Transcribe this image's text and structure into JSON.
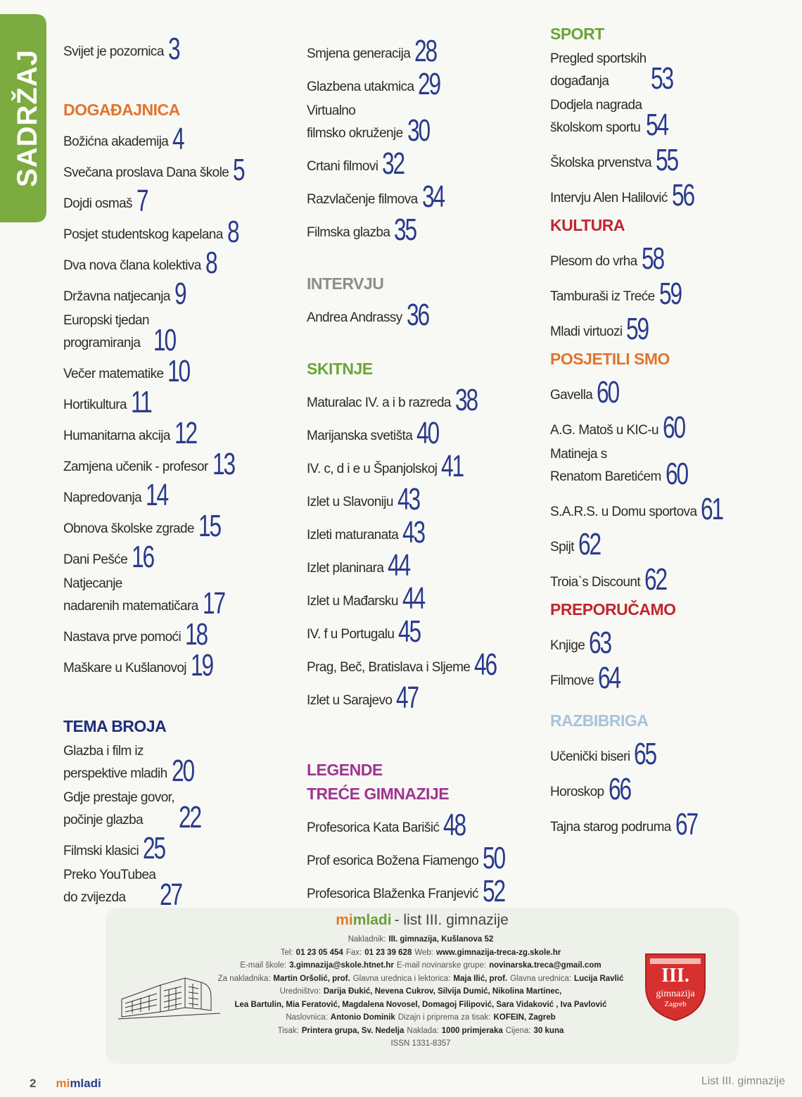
{
  "sidebar": {
    "title": "SADRŽAJ"
  },
  "contents": {
    "columns": [
      {
        "sections": [
          {
            "entries": [
              {
                "lines": [
                  "Svijet je pozornica"
                ],
                "page": 3
              }
            ]
          },
          {
            "heading": {
              "lines": [
                "DOGAĐAJNICA"
              ],
              "color": "#e2742c"
            },
            "entries": [
              {
                "lines": [
                  "Božićna akademija"
                ],
                "page": 4
              },
              {
                "lines": [
                  "Svečana proslava Dana škole"
                ],
                "page": 5
              },
              {
                "lines": [
                  "Dojdi osmaš"
                ],
                "page": 7
              },
              {
                "lines": [
                  "Posjet studentskog kapelana"
                ],
                "page": 8
              },
              {
                "lines": [
                  "Dva nova člana kolektiva"
                ],
                "page": 8
              },
              {
                "lines": [
                  "Državna natjecanja"
                ],
                "page": 9
              },
              {
                "lines": [
                  "Europski tjedan",
                  "programiranja"
                ],
                "page": 10
              },
              {
                "lines": [
                  "Večer matematike"
                ],
                "page": 10
              },
              {
                "lines": [
                  "Hortikultura"
                ],
                "page": 11
              },
              {
                "lines": [
                  "Humanitarna akcija"
                ],
                "page": 12
              },
              {
                "lines": [
                  "Zamjena učenik - profesor"
                ],
                "page": 13
              },
              {
                "lines": [
                  "Napredovanja"
                ],
                "page": 14
              },
              {
                "lines": [
                  "Obnova školske zgrade"
                ],
                "page": 15
              },
              {
                "lines": [
                  "Dani Pešće"
                ],
                "page": 16
              },
              {
                "lines": [
                  "Natjecanje",
                  "nadarenih matematičara"
                ],
                "page": 17
              },
              {
                "lines": [
                  "Nastava prve pomoći"
                ],
                "page": 18
              },
              {
                "lines": [
                  "Maškare u Kušlanovoj"
                ],
                "page": 19
              }
            ]
          },
          {
            "heading": {
              "lines": [
                "TEMA BROJA"
              ],
              "color": "#1f2e78"
            },
            "entries": [
              {
                "lines": [
                  "Glazba i film iz",
                  "perspektive mladih"
                ],
                "page": 20
              },
              {
                "lines": [
                  "Gdje prestaje govor,",
                  "počinje glazba"
                ],
                "page": 22
              },
              {
                "lines": [
                  "Filmski klasici"
                ],
                "page": 25
              },
              {
                "lines": [
                  "Preko YouTubea",
                  "do zvijezda"
                ],
                "page": 27
              }
            ]
          }
        ]
      },
      {
        "sections": [
          {
            "entries": [
              {
                "lines": [
                  "Smjena generacija"
                ],
                "page": 28
              },
              {
                "lines": [
                  "Glazbena utakmica"
                ],
                "page": 29
              },
              {
                "lines": [
                  "Virtualno",
                  "filmsko okruženje"
                ],
                "page": 30
              },
              {
                "lines": [
                  "Crtani filmovi"
                ],
                "page": 32
              },
              {
                "lines": [
                  "Razvlačenje filmova"
                ],
                "page": 34
              },
              {
                "lines": [
                  "Filmska glazba"
                ],
                "page": 35
              }
            ]
          },
          {
            "heading": {
              "lines": [
                "INTERVJU"
              ],
              "color": "#8c8c8c"
            },
            "entries": [
              {
                "lines": [
                  "Andrea Andrassy"
                ],
                "page": 36
              }
            ]
          },
          {
            "heading": {
              "lines": [
                "SKITNJE"
              ],
              "color": "#6aa536"
            },
            "entries": [
              {
                "lines": [
                  "Maturalac IV. a i b razreda"
                ],
                "page": 38
              },
              {
                "lines": [
                  "Marijanska svetišta"
                ],
                "page": 40
              },
              {
                "lines": [
                  "IV. c, d i e u Španjolskoj"
                ],
                "page": 41
              },
              {
                "lines": [
                  "Izlet u Slavoniju"
                ],
                "page": 43
              },
              {
                "lines": [
                  "Izleti maturanata"
                ],
                "page": 43
              },
              {
                "lines": [
                  "Izlet planinara"
                ],
                "page": 44
              },
              {
                "lines": [
                  "Izlet u Mađarsku"
                ],
                "page": 44
              },
              {
                "lines": [
                  "IV. f u Portugalu"
                ],
                "page": 45
              },
              {
                "lines": [
                  "Prag, Beč, Bratislava i Sljeme"
                ],
                "page": 46
              },
              {
                "lines": [
                  "Izlet u Sarajevo"
                ],
                "page": 47
              }
            ]
          },
          {
            "heading": {
              "lines": [
                "LEGENDE",
                "TREĆE GIMNAZIJE"
              ],
              "color": "#9e358e"
            },
            "entries": [
              {
                "lines": [
                  "Profesorica Kata Barišić"
                ],
                "page": 48
              },
              {
                "lines": [
                  "Prof esorica Božena Fiamengo"
                ],
                "page": 50
              },
              {
                "lines": [
                  "Profesorica Blaženka Franjević"
                ],
                "page": 52
              }
            ]
          }
        ]
      },
      {
        "sections": [
          {
            "heading": {
              "lines": [
                "SPORT"
              ],
              "color": "#6aa536"
            },
            "entries": [
              {
                "lines": [
                  "Pregled sportskih",
                  "događanja"
                ],
                "page": 53
              },
              {
                "lines": [
                  "Dodjela nagrada",
                  "školskom sportu"
                ],
                "page": 54
              },
              {
                "lines": [
                  "Školska prvenstva"
                ],
                "page": 55
              },
              {
                "lines": [
                  "Intervju Alen Halilović"
                ],
                "page": 56
              }
            ]
          },
          {
            "heading": {
              "lines": [
                "KULTURA"
              ],
              "color": "#c1272d"
            },
            "entries": [
              {
                "lines": [
                  "Plesom do vrha"
                ],
                "page": 58
              },
              {
                "lines": [
                  "Tamburaši iz Treće"
                ],
                "page": 59
              },
              {
                "lines": [
                  "Mladi virtuozi"
                ],
                "page": 59
              }
            ]
          },
          {
            "heading": {
              "lines": [
                "POSJETILI SMO"
              ],
              "color": "#e2742c"
            },
            "entries": [
              {
                "lines": [
                  "Gavella"
                ],
                "page": 60
              },
              {
                "lines": [
                  "A.G.  Matoš u KIC-u"
                ],
                "page": 60
              },
              {
                "lines": [
                  "Matineja s",
                  "Renatom Baretićem"
                ],
                "page": 60
              },
              {
                "lines": [
                  "S.A.R.S. u Domu sportova"
                ],
                "page": 61
              },
              {
                "lines": [
                  "Spijt"
                ],
                "page": 62
              },
              {
                "lines": [
                  "Troia`s Discount"
                ],
                "page": 62
              }
            ]
          },
          {
            "heading": {
              "lines": [
                "PREPORUČAMO"
              ],
              "color": "#c1272d"
            },
            "entries": [
              {
                "lines": [
                  "Knjige"
                ],
                "page": 63
              },
              {
                "lines": [
                  "Filmove"
                ],
                "page": 64
              }
            ]
          },
          {
            "heading": {
              "lines": [
                "RAZBIBRIGA"
              ],
              "color": "#a8c2dc"
            },
            "entries": [
              {
                "lines": [
                  "Učenički biseri"
                ],
                "page": 65
              },
              {
                "lines": [
                  "Horoskop"
                ],
                "page": 66
              },
              {
                "lines": [
                  "Tajna starog podruma"
                ],
                "page": 67
              }
            ]
          }
        ]
      }
    ]
  },
  "imprint": {
    "brand_mi": "mi",
    "brand_mladi": "mladi",
    "brand_rest": "- list III. gimnazije",
    "lines": [
      [
        {
          "label": "Nakladnik:",
          "value": "III. gimnazija, Kušlanova 52"
        }
      ],
      [
        {
          "label": "Tel:",
          "value": "01 23 05 454"
        },
        {
          "label": "Fax:",
          "value": "01 23 39 628"
        },
        {
          "label": "Web:",
          "value": "www.gimnazija-treca-zg.skole.hr"
        }
      ],
      [
        {
          "label": "E-mail škole:",
          "value": "3.gimnazija@skole.htnet.hr"
        },
        {
          "label": "E-mail novinarske grupe:",
          "value": "novinarska.treca@gmail.com"
        }
      ],
      [
        {
          "label": "Za nakladnika:",
          "value": "Martin Oršolić, prof."
        },
        {
          "label": "Glavna urednica i lektorica:",
          "value": "Maja Ilić, prof."
        },
        {
          "label": "Glavna urednica:",
          "value": "Lucija Ravlić"
        }
      ],
      [
        {
          "label": "Uredništvo:",
          "value": "Darija Đukić, Nevena Cukrov, Silvija Dumić, Nikolina Martinec,"
        }
      ],
      [
        {
          "value": "Lea Bartulin, Mia Feratović, Magdalena Novosel, Domagoj Filipović, Sara Vidaković , Iva Pavlović"
        }
      ],
      [
        {
          "label": "Naslovnica:",
          "value": "Antonio Dominik"
        },
        {
          "label": "Dizajn i priprema za tisak:",
          "value": "KOFEIN, Zagreb"
        }
      ],
      [
        {
          "label": "Tisak:",
          "value": "Printera grupa, Sv. Nedelja"
        },
        {
          "label": "Naklada:",
          "value": "1000 primjeraka"
        },
        {
          "label": "Cijena:",
          "value": "30 kuna"
        }
      ],
      [
        {
          "label": "ISSN 1331-8357"
        }
      ]
    ]
  },
  "logo": {
    "numeral": "III.",
    "name": "gimnazija",
    "city": "Zagreb"
  },
  "footer": {
    "page_number": "2",
    "brand_mi": "mi",
    "brand_mladi": "mladi",
    "right": "List III. gimnazije"
  }
}
